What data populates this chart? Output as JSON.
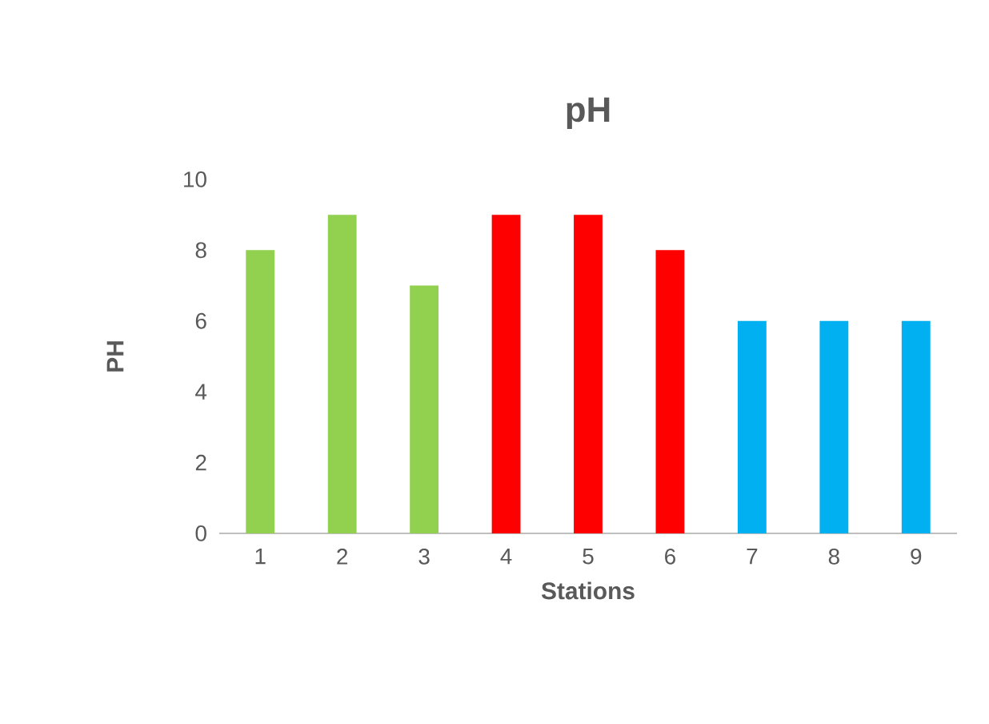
{
  "chart_data": {
    "type": "bar",
    "title": "pH",
    "xlabel": "Stations",
    "ylabel": "PH",
    "categories": [
      "1",
      "2",
      "3",
      "4",
      "5",
      "6",
      "7",
      "8",
      "9"
    ],
    "values": [
      8,
      9,
      7,
      9,
      9,
      8,
      6,
      6,
      6
    ],
    "colors": [
      "#92d050",
      "#92d050",
      "#92d050",
      "#ff0000",
      "#ff0000",
      "#ff0000",
      "#00b0f0",
      "#00b0f0",
      "#00b0f0"
    ],
    "ylim": [
      0,
      10
    ],
    "yticks": [
      0,
      2,
      4,
      6,
      8,
      10
    ]
  }
}
